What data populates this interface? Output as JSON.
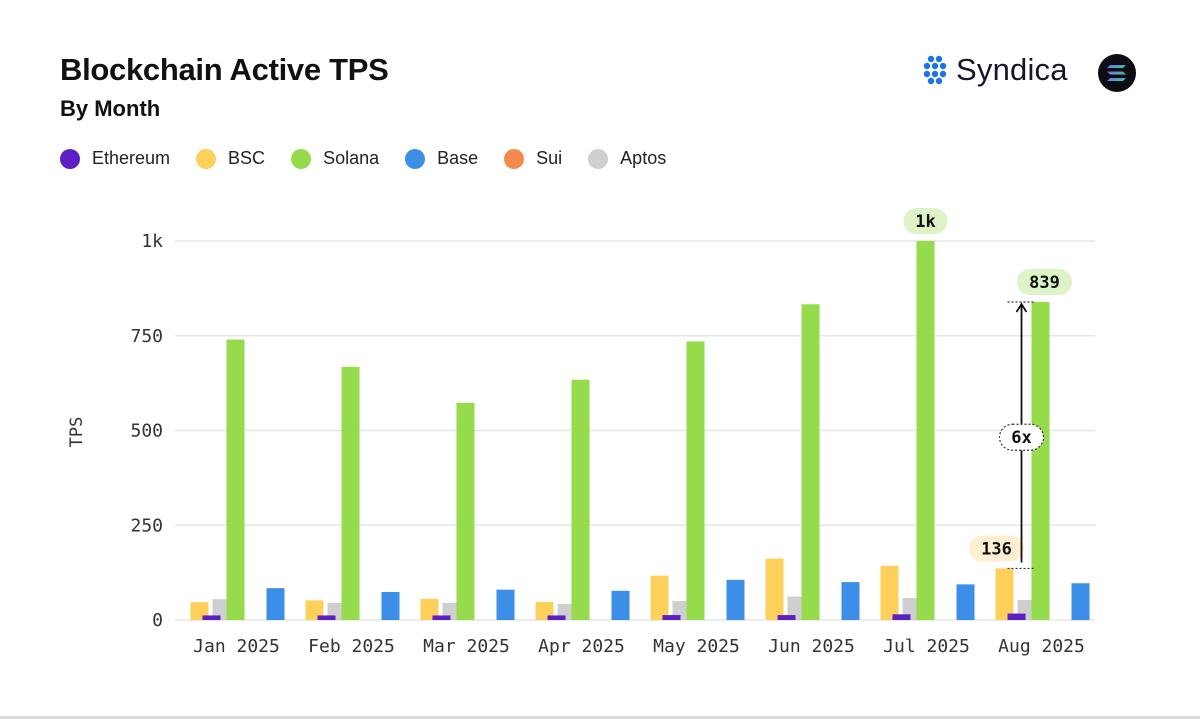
{
  "header": {
    "title": "Blockchain Active TPS",
    "subtitle": "By Month",
    "brand_name": "Syndica"
  },
  "colors": {
    "grid": "#e6e6e6",
    "axis_text": "#333333",
    "label_green_bg": "#dff3c8",
    "label_yellow_bg": "#fdf0d2",
    "brand_blue": "#1a73e8"
  },
  "chart_data": {
    "type": "bar",
    "title": "Blockchain Active TPS",
    "subtitle": "By Month",
    "xlabel": "",
    "ylabel": "TPS",
    "ylim": [
      0,
      1000
    ],
    "yticks": [
      0,
      250,
      500,
      750,
      1000
    ],
    "ytick_labels": [
      "0",
      "250",
      "500",
      "750",
      "1k"
    ],
    "grid": true,
    "legend_position": "top-left",
    "categories": [
      "Jan 2025",
      "Feb 2025",
      "Mar 2025",
      "Apr 2025",
      "May 2025",
      "Jun 2025",
      "Jul 2025",
      "Aug 2025"
    ],
    "series": [
      {
        "name": "Ethereum",
        "color": "#5b1fc4",
        "values": [
          12,
          12,
          12,
          12,
          13,
          13,
          15,
          17
        ]
      },
      {
        "name": "BSC",
        "color": "#fcd05a",
        "values": [
          47,
          52,
          56,
          48,
          117,
          162,
          143,
          136
        ]
      },
      {
        "name": "Solana",
        "color": "#95db4b",
        "values": [
          740,
          668,
          573,
          634,
          735,
          833,
          1000,
          839
        ]
      },
      {
        "name": "Base",
        "color": "#3c8ee6",
        "values": [
          84,
          74,
          80,
          77,
          106,
          100,
          94,
          97
        ]
      },
      {
        "name": "Sui",
        "color": "#f58a4b",
        "values": [
          0,
          0,
          0,
          0,
          0,
          0,
          0,
          0
        ]
      },
      {
        "name": "Aptos",
        "color": "#cfcfcf",
        "values": [
          55,
          45,
          45,
          42,
          50,
          62,
          58,
          53
        ]
      }
    ],
    "annotations": [
      {
        "text": "1k",
        "category": "Jul 2025",
        "series": "Solana",
        "style": "green"
      },
      {
        "text": "839",
        "category": "Aug 2025",
        "series": "Solana",
        "style": "green"
      },
      {
        "text": "136",
        "category": "Aug 2025",
        "series": "BSC",
        "style": "yellow"
      },
      {
        "text": "6x",
        "category": "Aug 2025",
        "from_value": 136,
        "to_value": 839,
        "style": "ratio"
      }
    ]
  }
}
